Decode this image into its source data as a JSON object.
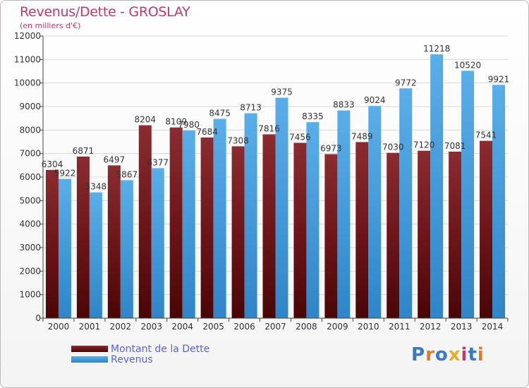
{
  "title": "Revenus/Dette - GROSLAY",
  "subtitle": "(en milliers d'€)",
  "logo": {
    "text": "Proxiti",
    "colors": [
      "#3a78c6",
      "#e07a2b",
      "#3a78c6",
      "#e0b22b",
      "#c0396e",
      "#3a78c6",
      "#e07a2b"
    ]
  },
  "colors": {
    "dette": "#7a1a1e",
    "revenus": "#4a9ee0",
    "title": "#c0396e",
    "legend_text": "#5a63d8"
  },
  "chart_data": {
    "type": "bar",
    "categories": [
      "2000",
      "2001",
      "2002",
      "2003",
      "2004",
      "2005",
      "2006",
      "2007",
      "2008",
      "2009",
      "2010",
      "2011",
      "2012",
      "2013",
      "2014"
    ],
    "series": [
      {
        "name": "Montant de la Dette",
        "values": [
          6304,
          6871,
          6497,
          8204,
          8109,
          7684,
          7308,
          7816,
          7456,
          6973,
          7489,
          7030,
          7120,
          7081,
          7541
        ]
      },
      {
        "name": "Revenus",
        "values": [
          5922,
          5348,
          5867,
          6377,
          7980,
          8475,
          8713,
          9375,
          8335,
          8833,
          9024,
          9772,
          11218,
          10520,
          9921
        ]
      }
    ],
    "y_ticks": [
      "0",
      "1000",
      "2000",
      "3000",
      "4000",
      "5000",
      "6000",
      "7000",
      "8000",
      "9000",
      "10000",
      "11000",
      "12000"
    ],
    "ylim": [
      0,
      12000
    ],
    "grid": "horizontal",
    "legend_position": "bottom-left"
  }
}
